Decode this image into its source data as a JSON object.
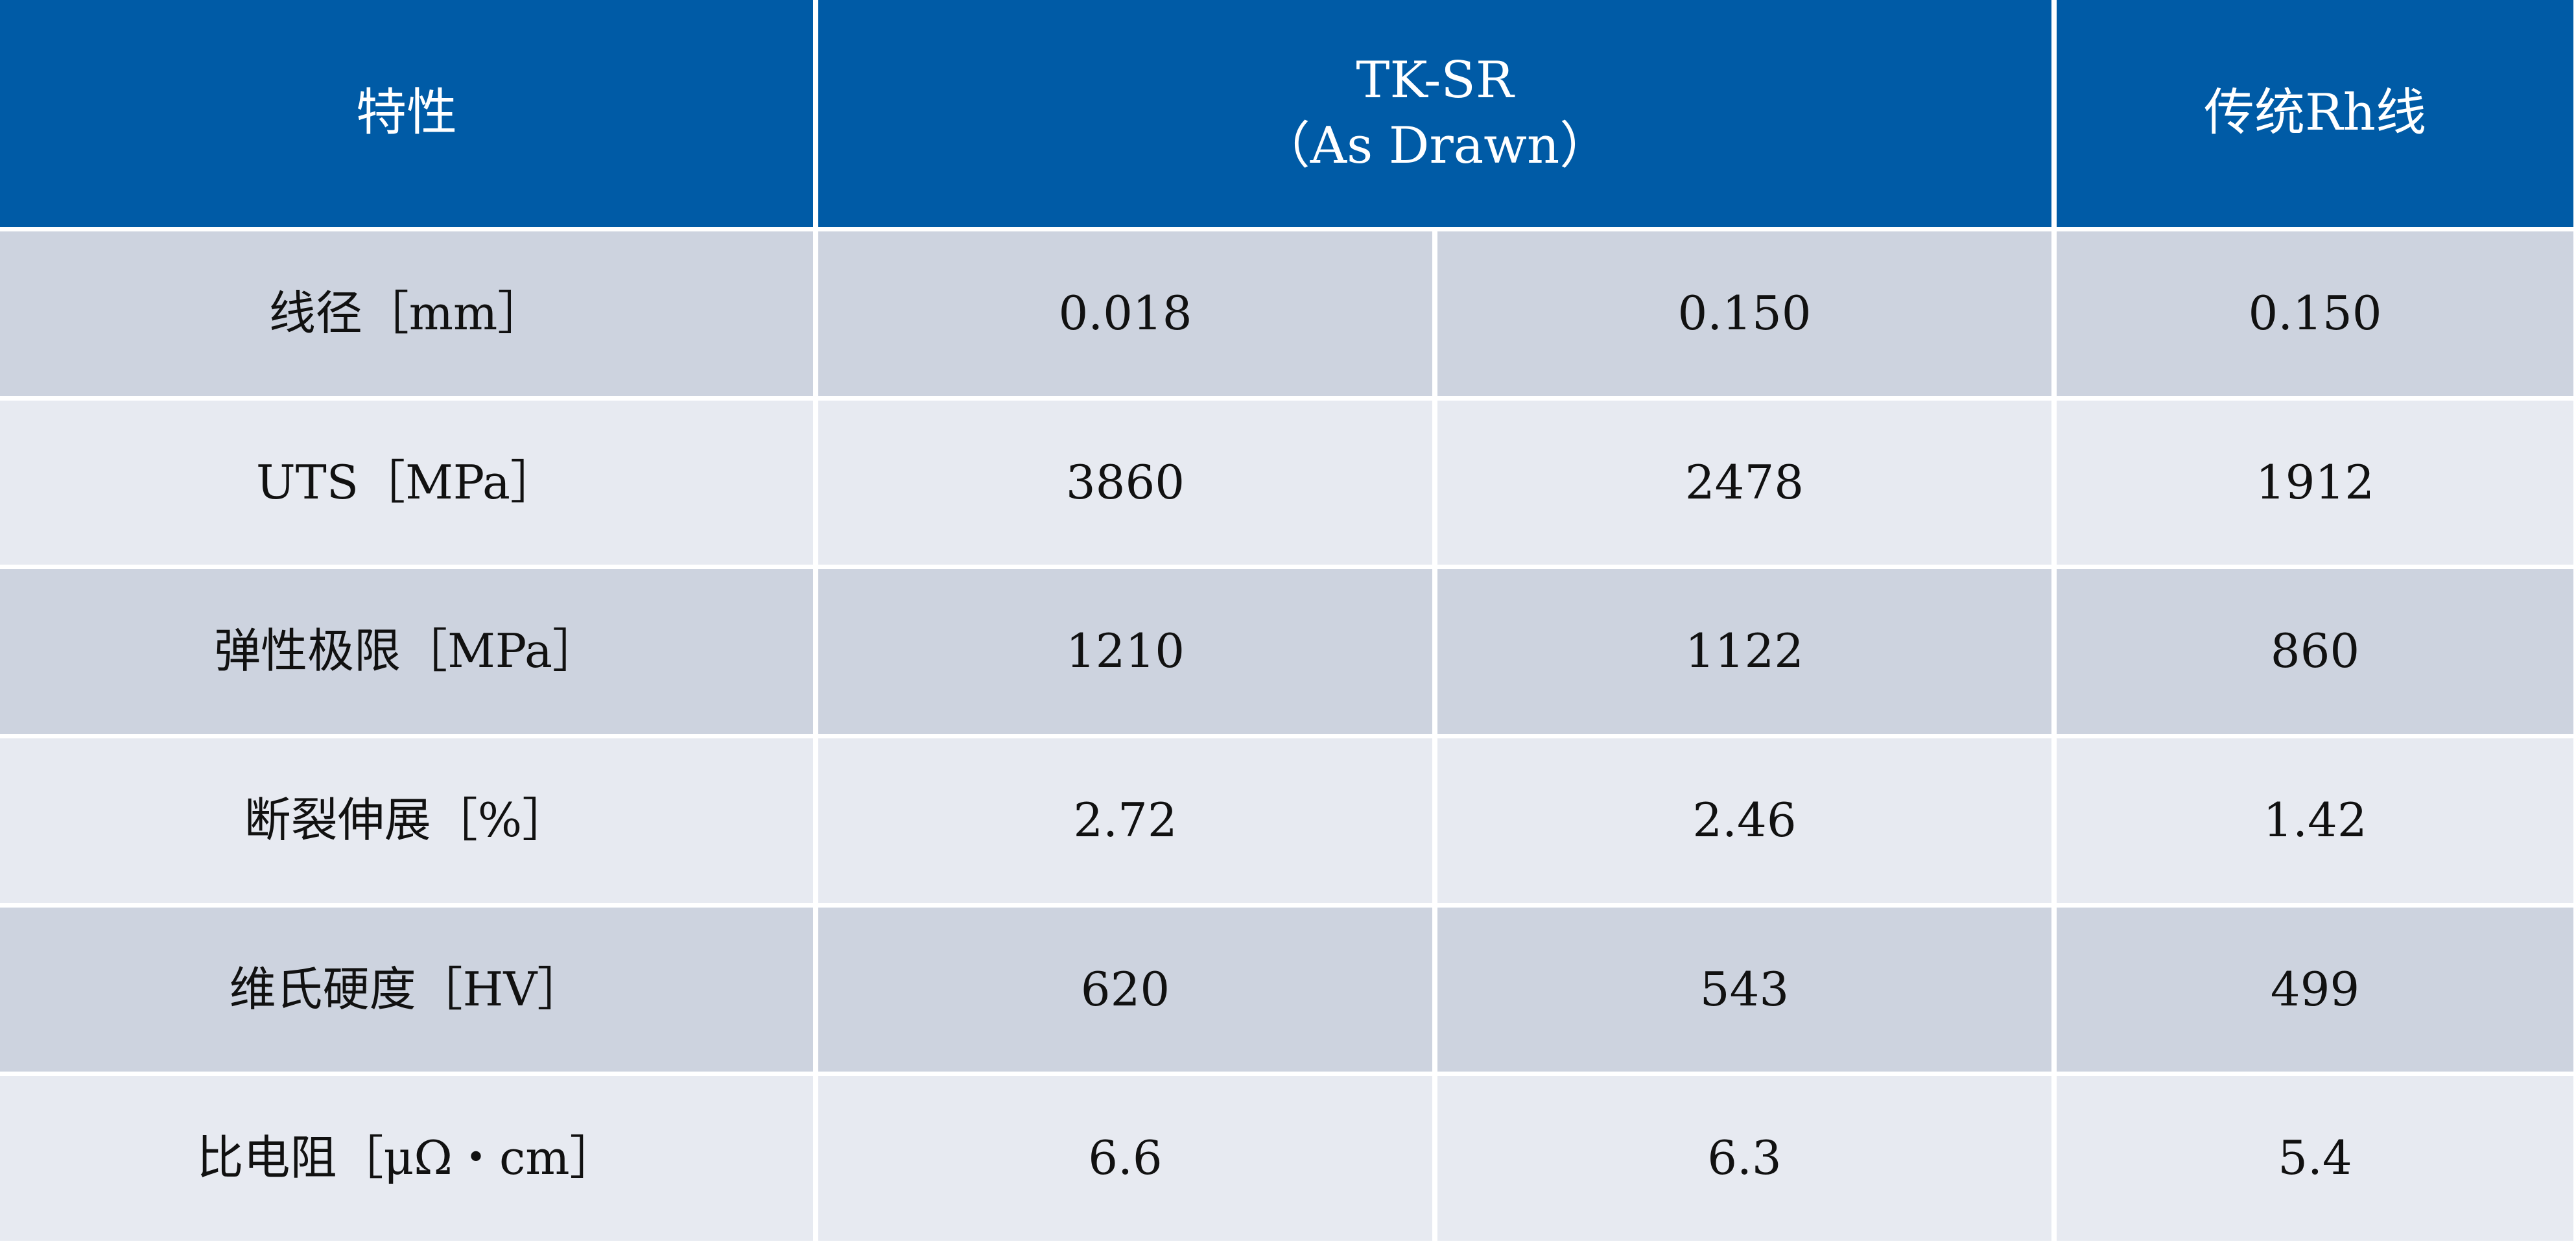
{
  "table": {
    "header": [
      "特性",
      "TK-SR\n（As Drawn）",
      "传统Rh线"
    ],
    "rows": [
      [
        "线径［mm］",
        "0.018",
        "0.150",
        "0.150"
      ],
      [
        "UTS［MPa］",
        "3860",
        "2478",
        "1912"
      ],
      [
        "弹性极限［MPa］",
        "1210",
        "1122",
        "860"
      ],
      [
        "断裂伸展［%］",
        "2.72",
        "2.46",
        "1.42"
      ],
      [
        "维氏硬度［HV］",
        "620",
        "543",
        "499"
      ],
      [
        "比电阻［μΩ・cm］",
        "6.6",
        "6.3",
        "5.4"
      ]
    ]
  }
}
